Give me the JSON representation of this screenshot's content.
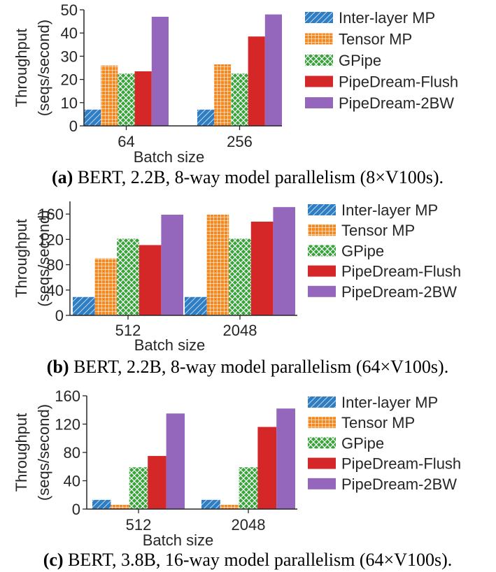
{
  "colors": {
    "Inter-layer MP": "#2f7ec4",
    "Tensor MP": "#f5891f",
    "GPipe": "#37a43a",
    "PipeDream-Flush": "#d62728",
    "PipeDream-2BW": "#9467bd"
  },
  "chart_data": [
    {
      "type": "bar",
      "title": "",
      "xlabel": "Batch size",
      "ylabel": "Throughput\n(seqs/second)",
      "ylabel_lines": [
        "Throughput",
        "(seqs/second)"
      ],
      "ylim": [
        0,
        50
      ],
      "yticks": [
        0,
        10,
        20,
        30,
        40,
        50
      ],
      "categories": [
        "64",
        "256"
      ],
      "legend": "right",
      "series": [
        {
          "name": "Inter-layer MP",
          "values": [
            7,
            7
          ]
        },
        {
          "name": "Tensor MP",
          "values": [
            26,
            26.5
          ]
        },
        {
          "name": "GPipe",
          "values": [
            22.5,
            22.5
          ]
        },
        {
          "name": "PipeDream-Flush",
          "values": [
            23.5,
            38.5
          ]
        },
        {
          "name": "PipeDream-2BW",
          "values": [
            47,
            48
          ]
        }
      ],
      "caption": {
        "tag": "(a)",
        "text": " BERT, 2.2B, 8-way model parallelism (8×V100s)."
      }
    },
    {
      "type": "bar",
      "title": "",
      "xlabel": "Batch size",
      "ylabel": "Throughput\n(seqs/second)",
      "ylabel_lines": [
        "Throughput",
        "(seqs/second)"
      ],
      "ylim": [
        0,
        180
      ],
      "yticks": [
        0,
        40,
        80,
        120,
        160
      ],
      "categories": [
        "512",
        "2048"
      ],
      "legend": "right",
      "series": [
        {
          "name": "Inter-layer MP",
          "values": [
            29,
            29
          ]
        },
        {
          "name": "Tensor MP",
          "values": [
            90,
            159
          ]
        },
        {
          "name": "GPipe",
          "values": [
            121,
            121
          ]
        },
        {
          "name": "PipeDream-Flush",
          "values": [
            111,
            148
          ]
        },
        {
          "name": "PipeDream-2BW",
          "values": [
            159,
            171
          ]
        }
      ],
      "caption": {
        "tag": "(b)",
        "text": " BERT, 2.2B, 8-way model parallelism (64×V100s)."
      }
    },
    {
      "type": "bar",
      "title": "",
      "xlabel": "Batch size",
      "ylabel": "Throughput\n(seqs/second)",
      "ylabel_lines": [
        "Throughput",
        "(seqs/second)"
      ],
      "ylim": [
        0,
        160
      ],
      "yticks": [
        0,
        40,
        80,
        120,
        160
      ],
      "categories": [
        "512",
        "2048"
      ],
      "legend": "right",
      "series": [
        {
          "name": "Inter-layer MP",
          "values": [
            13,
            13
          ]
        },
        {
          "name": "Tensor MP",
          "values": [
            6,
            6
          ]
        },
        {
          "name": "GPipe",
          "values": [
            59,
            59
          ]
        },
        {
          "name": "PipeDream-Flush",
          "values": [
            75,
            116
          ]
        },
        {
          "name": "PipeDream-2BW",
          "values": [
            135,
            142
          ]
        }
      ],
      "caption": {
        "tag": "(c)",
        "text": " BERT, 3.8B, 16-way model parallelism (64×V100s)."
      }
    }
  ]
}
